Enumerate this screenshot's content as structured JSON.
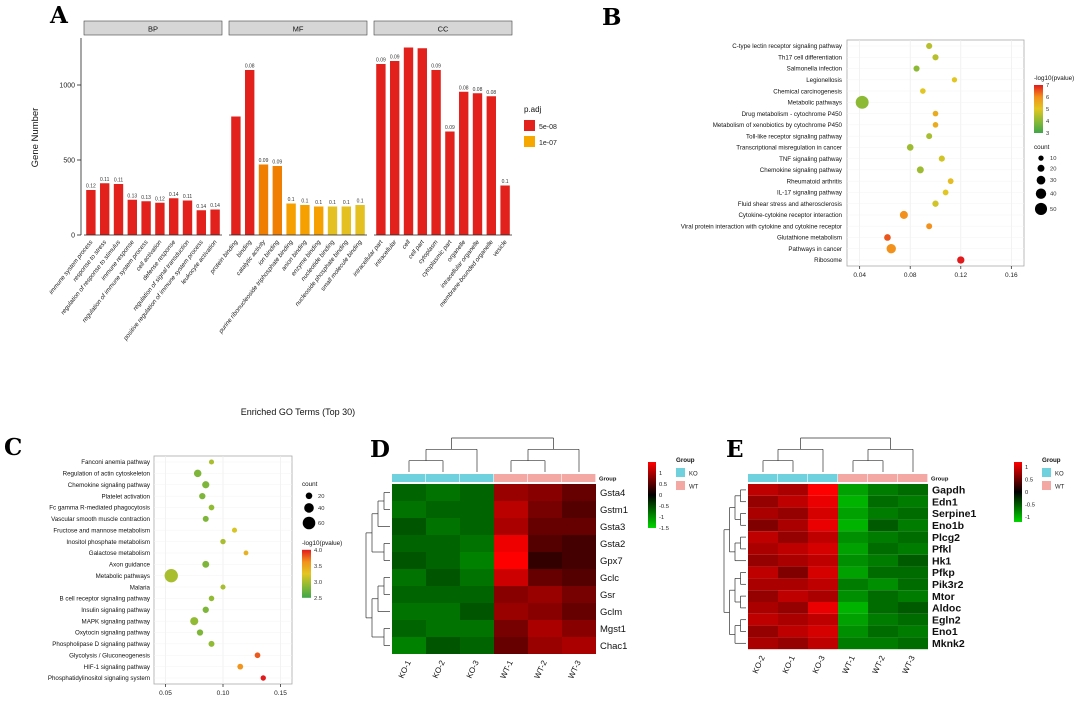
{
  "panels": {
    "A": {
      "label": "A"
    },
    "B": {
      "label": "B"
    },
    "C": {
      "label": "C"
    },
    "D": {
      "label": "D"
    },
    "E": {
      "label": "E"
    }
  },
  "chart_data": [
    {
      "panel": "A",
      "type": "bar",
      "title": "",
      "ylabel": "Gene Number",
      "xlabel": "Enriched GO Terms (Top 30)",
      "yticks": [
        0,
        500,
        1000
      ],
      "ylim": [
        0,
        1300
      ],
      "legend": {
        "title": "p.adj",
        "items": [
          {
            "label": "5e-08",
            "color": "#e3211c"
          },
          {
            "label": "1e-07",
            "color": "#f6a800"
          }
        ]
      },
      "facets": [
        {
          "label": "BP",
          "bars": [
            {
              "label": "immune system process",
              "value": 300,
              "tag": "0.12",
              "color": "#e3211c"
            },
            {
              "label": "response to stress",
              "value": 345,
              "tag": "0.11",
              "color": "#e3211c"
            },
            {
              "label": "regulation of response to stimulus",
              "value": 340,
              "tag": "0.11",
              "color": "#e3211c"
            },
            {
              "label": "immune response",
              "value": 235,
              "tag": "0.13",
              "color": "#e3211c"
            },
            {
              "label": "regulation of immune system process",
              "value": 225,
              "tag": "0.13",
              "color": "#e3211c"
            },
            {
              "label": "cell activation",
              "value": 215,
              "tag": "0.12",
              "color": "#e3211c"
            },
            {
              "label": "defense response",
              "value": 245,
              "tag": "0.14",
              "color": "#e3211c"
            },
            {
              "label": "regulation of signal transduction",
              "value": 230,
              "tag": "0.11",
              "color": "#e3211c"
            },
            {
              "label": "positive regulation of immune system process",
              "value": 165,
              "tag": "0.14",
              "color": "#e3211c"
            },
            {
              "label": "leukocyte activation",
              "value": 170,
              "tag": "0.14",
              "color": "#e3211c"
            }
          ]
        },
        {
          "label": "MF",
          "bars": [
            {
              "label": "protein binding",
              "value": 790,
              "tag": "",
              "color": "#e3211c"
            },
            {
              "label": "binding",
              "value": 1100,
              "tag": "0.08",
              "color": "#e3211c"
            },
            {
              "label": "catalytic activity",
              "value": 470,
              "tag": "0.09",
              "color": "#f07e00"
            },
            {
              "label": "ion binding",
              "value": 460,
              "tag": "0.09",
              "color": "#f07e00"
            },
            {
              "label": "purine ribonucleoside triphosphate binding",
              "value": 210,
              "tag": "0.1",
              "color": "#f6a000"
            },
            {
              "label": "anion binding",
              "value": 200,
              "tag": "0.1",
              "color": "#f6a000"
            },
            {
              "label": "enzyme binding",
              "value": 190,
              "tag": "0.1",
              "color": "#f6a000"
            },
            {
              "label": "nucleotide binding",
              "value": 190,
              "tag": "0.1",
              "color": "#e4c020"
            },
            {
              "label": "nucleoside phosphate binding",
              "value": 190,
              "tag": "0.1",
              "color": "#e4c020"
            },
            {
              "label": "small molecule binding",
              "value": 200,
              "tag": "0.1",
              "color": "#e4c020"
            }
          ]
        },
        {
          "label": "CC",
          "bars": [
            {
              "label": "intracellular part",
              "value": 1140,
              "tag": "0.09",
              "color": "#e3211c"
            },
            {
              "label": "intracellular",
              "value": 1160,
              "tag": "0.09",
              "color": "#e3211c"
            },
            {
              "label": "cell",
              "value": 1250,
              "tag": "",
              "color": "#e3211c"
            },
            {
              "label": "cell part",
              "value": 1245,
              "tag": "",
              "color": "#e3211c"
            },
            {
              "label": "cytoplasm",
              "value": 1100,
              "tag": "0.09",
              "color": "#e3211c"
            },
            {
              "label": "cytoplasmic part",
              "value": 690,
              "tag": "0.09",
              "color": "#e3211c"
            },
            {
              "label": "organelle",
              "value": 955,
              "tag": "0.08",
              "color": "#e3211c"
            },
            {
              "label": "intracellular organelle",
              "value": 945,
              "tag": "0.08",
              "color": "#e3211c"
            },
            {
              "label": "membrane-bounded organelle",
              "value": 925,
              "tag": "0.08",
              "color": "#e3211c"
            },
            {
              "label": "vesicle",
              "value": 330,
              "tag": "0.1",
              "color": "#e3211c"
            }
          ]
        }
      ]
    },
    {
      "panel": "B",
      "type": "scatter",
      "xlim": [
        0.03,
        0.17
      ],
      "xticks": [
        0.04,
        0.08,
        0.12,
        0.16
      ],
      "color_scale": {
        "title": "-log10(pvalue)",
        "min": 3,
        "max": 7,
        "ticks": [
          7,
          6,
          5,
          4,
          3
        ],
        "decimals": 0
      },
      "size_legend": {
        "title": "count",
        "values": [
          10,
          20,
          30,
          40,
          50
        ]
      },
      "rows": [
        {
          "label": "C-type lectin receptor signaling pathway",
          "x": 0.095,
          "count": 15,
          "logp": 4.5
        },
        {
          "label": "Th17 cell differentiation",
          "x": 0.1,
          "count": 15,
          "logp": 4.5
        },
        {
          "label": "Salmonella infection",
          "x": 0.085,
          "count": 15,
          "logp": 4.0
        },
        {
          "label": "Legionellosis",
          "x": 0.115,
          "count": 10,
          "logp": 5.0
        },
        {
          "label": "Chemical carcinogenesis",
          "x": 0.09,
          "count": 12,
          "logp": 5.0
        },
        {
          "label": "Metabolic pathways",
          "x": 0.042,
          "count": 55,
          "logp": 4.0
        },
        {
          "label": "Drug metabolism - cytochrome P450",
          "x": 0.1,
          "count": 12,
          "logp": 5.5
        },
        {
          "label": "Metabolism of xenobiotics by cytochrome P450",
          "x": 0.1,
          "count": 12,
          "logp": 5.5
        },
        {
          "label": "Toll-like receptor signaling pathway",
          "x": 0.095,
          "count": 14,
          "logp": 4.3
        },
        {
          "label": "Transcriptional misregulation in cancer",
          "x": 0.08,
          "count": 18,
          "logp": 4.2
        },
        {
          "label": "TNF signaling pathway",
          "x": 0.105,
          "count": 15,
          "logp": 4.8
        },
        {
          "label": "Chemokine signaling pathway",
          "x": 0.088,
          "count": 20,
          "logp": 4.2
        },
        {
          "label": "Rheumatoid arthritis",
          "x": 0.112,
          "count": 13,
          "logp": 5.2
        },
        {
          "label": "IL-17 signaling pathway",
          "x": 0.108,
          "count": 13,
          "logp": 5.0
        },
        {
          "label": "Fluid shear stress and atherosclerosis",
          "x": 0.1,
          "count": 16,
          "logp": 4.8
        },
        {
          "label": "Cytokine-cytokine receptor interaction",
          "x": 0.075,
          "count": 26,
          "logp": 6.0
        },
        {
          "label": "Viral protein interaction with cytokine and cytokine receptor",
          "x": 0.095,
          "count": 14,
          "logp": 6.0
        },
        {
          "label": "Glutathione metabolism",
          "x": 0.062,
          "count": 18,
          "logp": 6.5
        },
        {
          "label": "Pathways in cancer",
          "x": 0.065,
          "count": 34,
          "logp": 6.0
        },
        {
          "label": "Ribosome",
          "x": 0.12,
          "count": 22,
          "logp": 7.0
        }
      ]
    },
    {
      "panel": "C",
      "type": "scatter",
      "xlim": [
        0.04,
        0.16
      ],
      "xticks": [
        0.05,
        0.1,
        0.15
      ],
      "color_scale": {
        "title": "-log10(pvalue)",
        "min": 2.5,
        "max": 4.0,
        "ticks": [
          4.0,
          3.5,
          3.0,
          2.5
        ],
        "decimals": 1
      },
      "size_legend": {
        "title": "count",
        "values": [
          20,
          40,
          60
        ]
      },
      "rows": [
        {
          "label": "Fanconi anemia pathway",
          "x": 0.09,
          "count": 10,
          "logp": 3.0
        },
        {
          "label": "Regulation of actin cytoskeleton",
          "x": 0.078,
          "count": 26,
          "logp": 2.8
        },
        {
          "label": "Chemokine signaling pathway",
          "x": 0.085,
          "count": 24,
          "logp": 2.8
        },
        {
          "label": "Platelet activation",
          "x": 0.082,
          "count": 18,
          "logp": 2.8
        },
        {
          "label": "Fc gamma R-mediated phagocytosis",
          "x": 0.09,
          "count": 14,
          "logp": 2.9
        },
        {
          "label": "Vascular smooth muscle contraction",
          "x": 0.085,
          "count": 16,
          "logp": 2.8
        },
        {
          "label": "Fructose and mannose metabolism",
          "x": 0.11,
          "count": 10,
          "logp": 3.2
        },
        {
          "label": "Inositol phosphate metabolism",
          "x": 0.1,
          "count": 12,
          "logp": 3.0
        },
        {
          "label": "Galactose metabolism",
          "x": 0.12,
          "count": 8,
          "logp": 3.4
        },
        {
          "label": "Axon guidance",
          "x": 0.085,
          "count": 22,
          "logp": 2.8
        },
        {
          "label": "Metabolic pathways",
          "x": 0.055,
          "count": 65,
          "logp": 3.0
        },
        {
          "label": "Malaria",
          "x": 0.1,
          "count": 10,
          "logp": 3.0
        },
        {
          "label": "B cell receptor signaling pathway",
          "x": 0.09,
          "count": 13,
          "logp": 2.9
        },
        {
          "label": "Insulin signaling pathway",
          "x": 0.085,
          "count": 18,
          "logp": 2.8
        },
        {
          "label": "MAPK signaling pathway",
          "x": 0.075,
          "count": 30,
          "logp": 2.9
        },
        {
          "label": "Oxytocin signaling pathway",
          "x": 0.08,
          "count": 18,
          "logp": 2.8
        },
        {
          "label": "Phospholipase D signaling pathway",
          "x": 0.09,
          "count": 16,
          "logp": 2.9
        },
        {
          "label": "Glycolysis / Gluconeogenesis",
          "x": 0.13,
          "count": 14,
          "logp": 3.8
        },
        {
          "label": "HIF-1 signaling pathway",
          "x": 0.115,
          "count": 15,
          "logp": 3.6
        },
        {
          "label": "Phosphatidylinositol signaling system",
          "x": 0.135,
          "count": 12,
          "logp": 4.0
        }
      ]
    },
    {
      "panel": "D",
      "type": "heatmap",
      "vmax": 1.5,
      "scale_ticks": [
        1,
        0.5,
        0,
        -0.5,
        -1,
        -1.5
      ],
      "group_legend": {
        "title": "Group",
        "items": [
          {
            "label": "KO",
            "color": "#6fd1de"
          },
          {
            "label": "WT",
            "color": "#f4a8a4"
          }
        ]
      },
      "columns": [
        "KO-1",
        "KO-2",
        "KO-3",
        "WT-1",
        "WT-2",
        "WT-3"
      ],
      "col_groups": [
        0,
        0,
        0,
        1,
        1,
        1
      ],
      "rows": [
        {
          "label": "Gsta4",
          "values": [
            -0.7,
            -0.8,
            -0.7,
            0.9,
            0.8,
            0.6
          ]
        },
        {
          "label": "Gstm1",
          "values": [
            -0.8,
            -0.7,
            -0.7,
            1.1,
            0.7,
            0.5
          ]
        },
        {
          "label": "Gsta3",
          "values": [
            -0.6,
            -0.8,
            -0.7,
            1.0,
            0.6,
            0.6
          ]
        },
        {
          "label": "Gsta2",
          "values": [
            -0.7,
            -0.7,
            -0.8,
            1.4,
            0.5,
            0.4
          ]
        },
        {
          "label": "Gpx7",
          "values": [
            -0.6,
            -0.7,
            -0.9,
            1.5,
            0.3,
            0.4
          ]
        },
        {
          "label": "Gclc",
          "values": [
            -0.8,
            -0.6,
            -0.8,
            1.2,
            0.6,
            0.5
          ]
        },
        {
          "label": "Gsr",
          "values": [
            -0.7,
            -0.7,
            -0.7,
            0.8,
            0.9,
            0.7
          ]
        },
        {
          "label": "Gclm",
          "values": [
            -0.8,
            -0.8,
            -0.6,
            0.9,
            0.8,
            0.6
          ]
        },
        {
          "label": "Mgst1",
          "values": [
            -0.7,
            -0.8,
            -0.8,
            0.7,
            1.0,
            0.8
          ]
        },
        {
          "label": "Chac1",
          "values": [
            -0.9,
            -0.6,
            -0.7,
            0.6,
            0.9,
            1.0
          ]
        }
      ]
    },
    {
      "panel": "E",
      "type": "heatmap",
      "vmax": 1.2,
      "scale_ticks": [
        1,
        0.5,
        0,
        -0.5,
        -1
      ],
      "group_legend": {
        "title": "Group",
        "items": [
          {
            "label": "KO",
            "color": "#6fd1de"
          },
          {
            "label": "WT",
            "color": "#f4a8a4"
          }
        ]
      },
      "columns": [
        "KO-2",
        "KO-1",
        "KO-3",
        "WT-1",
        "WT-2",
        "WT-3"
      ],
      "col_groups": [
        0,
        0,
        0,
        1,
        1,
        1
      ],
      "rows": [
        {
          "label": "Gapdh",
          "values": [
            0.9,
            0.8,
            1.2,
            -0.9,
            -0.7,
            -0.6
          ]
        },
        {
          "label": "Edn1",
          "values": [
            0.7,
            0.9,
            1.1,
            -1.0,
            -0.6,
            -0.7
          ]
        },
        {
          "label": "Serpine1",
          "values": [
            0.8,
            0.7,
            1.0,
            -0.9,
            -0.7,
            -0.6
          ]
        },
        {
          "label": "Eno1b",
          "values": [
            0.6,
            0.8,
            1.1,
            -1.0,
            -0.5,
            -0.7
          ]
        },
        {
          "label": "Plcg2",
          "values": [
            0.9,
            0.7,
            0.9,
            -0.8,
            -0.7,
            -0.6
          ]
        },
        {
          "label": "Pfkl",
          "values": [
            0.8,
            0.9,
            1.0,
            -0.9,
            -0.6,
            -0.7
          ]
        },
        {
          "label": "Hk1",
          "values": [
            0.7,
            0.8,
            0.9,
            -0.8,
            -0.7,
            -0.5
          ]
        },
        {
          "label": "Pfkp",
          "values": [
            0.9,
            0.6,
            1.0,
            -0.9,
            -0.6,
            -0.6
          ]
        },
        {
          "label": "Pik3r2",
          "values": [
            0.8,
            0.8,
            0.9,
            -0.7,
            -0.8,
            -0.6
          ]
        },
        {
          "label": "Mtor",
          "values": [
            0.7,
            0.9,
            0.8,
            -0.8,
            -0.6,
            -0.7
          ]
        },
        {
          "label": "Aldoc",
          "values": [
            0.8,
            0.7,
            1.1,
            -1.0,
            -0.6,
            -0.5
          ]
        },
        {
          "label": "Egln2",
          "values": [
            0.9,
            0.8,
            0.9,
            -0.9,
            -0.7,
            -0.6
          ]
        },
        {
          "label": "Eno1",
          "values": [
            0.7,
            0.9,
            1.0,
            -0.8,
            -0.6,
            -0.7
          ]
        },
        {
          "label": "Mknk2",
          "values": [
            0.8,
            0.7,
            0.9,
            -0.7,
            -0.7,
            -0.6
          ]
        }
      ]
    }
  ]
}
